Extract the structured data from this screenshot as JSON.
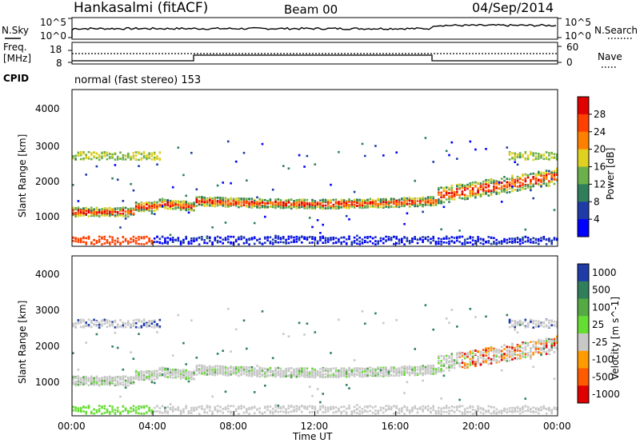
{
  "header": {
    "station": "Hankasalmi (fitACF)",
    "beam": "Beam 00",
    "date": "04/Sep/2014"
  },
  "noise_panel": {
    "left_label": "N.Sky",
    "left_ticks": [
      "10^5",
      "10^0"
    ],
    "right_label": "N.Search",
    "right_ticks": [
      "10^5",
      "10^0"
    ]
  },
  "freq_panel": {
    "left_label_1": "Freq.",
    "left_label_2": "[MHz]",
    "left_ticks": [
      "18",
      "8"
    ],
    "right_label": "Nave",
    "right_ticks": [
      "60",
      "0"
    ]
  },
  "cpid": {
    "label": "CPID",
    "value": "normal (fast stereo) 153"
  },
  "colors": {
    "power": [
      "#0000ff",
      "#1e3ba8",
      "#2f7f5a",
      "#6bb04a",
      "#e0d020",
      "#ff8000",
      "#ff4000",
      "#e00000"
    ],
    "velocity": [
      "#1e3ba8",
      "#2f7f5a",
      "#55aa44",
      "#66dd33",
      "#c8c8c8",
      "#ff9a00",
      "#ff5a00",
      "#e00000"
    ]
  },
  "chart_data": [
    {
      "type": "heatmap",
      "name": "power",
      "xlabel": "",
      "ylabel": "Slant Range [km]",
      "xlim": [
        "00:00",
        "00:00"
      ],
      "ylim": [
        180,
        4500
      ],
      "y_ticks": [
        "1000",
        "2000",
        "3000",
        "4000"
      ],
      "colorbar_label": "Power [dB]",
      "colorbar_ticks": [
        "4",
        "8",
        "12",
        "16",
        "20",
        "24",
        "28"
      ]
    },
    {
      "type": "heatmap",
      "name": "velocity",
      "xlabel": "Time UT",
      "ylabel": "Slant Range [km]",
      "x_ticks": [
        "00:00",
        "04:00",
        "08:00",
        "12:00",
        "16:00",
        "20:00",
        "00:00"
      ],
      "ylim": [
        180,
        4500
      ],
      "y_ticks": [
        "1000",
        "2000",
        "3000",
        "4000"
      ],
      "colorbar_label": "Velocity [m s^-1]",
      "colorbar_ticks": [
        "1000",
        "500",
        "100",
        "25",
        "-25",
        "-100",
        "-500",
        "-1000"
      ]
    }
  ]
}
